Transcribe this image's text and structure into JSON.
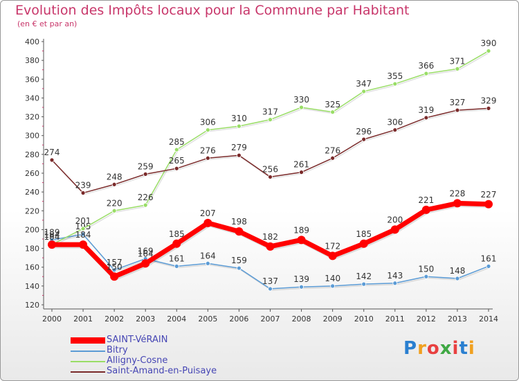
{
  "header": {
    "title": "Evolution des Impôts locaux pour la Commune par Habitant",
    "subtitle": "(en € et par an)"
  },
  "logo": {
    "text": "Proxiti",
    "letters": [
      "P",
      "r",
      "o",
      "x",
      "i",
      "t",
      "i"
    ],
    "colors": [
      "#2a7fd0",
      "#f0a020",
      "#e84040",
      "#3fa844",
      "#e84040",
      "#2a7fd0",
      "#f0a020"
    ]
  },
  "colors": {
    "title": "#c8366a",
    "axis": "#555555",
    "legend_text": "#4646b4"
  },
  "chart_data": {
    "type": "line",
    "title": "Evolution des Impôts locaux pour la Commune par Habitant",
    "subtitle": "(en € et par an)",
    "xlabel": "",
    "ylabel": "",
    "ylim": [
      120,
      400
    ],
    "yticks": [
      120,
      140,
      160,
      180,
      200,
      220,
      240,
      260,
      280,
      300,
      320,
      340,
      360,
      380,
      400
    ],
    "x": [
      "2000",
      "2001",
      "2002",
      "2003",
      "2004",
      "2005",
      "2006",
      "2007",
      "2008",
      "2009",
      "2010",
      "2011",
      "2012",
      "2013",
      "2014"
    ],
    "grid": false,
    "legend_position": "bottom-left",
    "series": [
      {
        "name": "SAINT-VéRAIN",
        "color": "#ff0000",
        "width": 7,
        "values": [
          184,
          184,
          150,
          164,
          185,
          207,
          198,
          182,
          189,
          172,
          185,
          200,
          221,
          228,
          227
        ]
      },
      {
        "name": "Bitry",
        "color": "#5b9bd5",
        "width": 1.5,
        "values": [
          189,
          195,
          157,
          169,
          161,
          164,
          159,
          137,
          139,
          140,
          142,
          143,
          150,
          148,
          161
        ]
      },
      {
        "name": "Alligny-Cosne",
        "color": "#99dd66",
        "width": 1.5,
        "values": [
          184,
          201,
          220,
          226,
          285,
          306,
          310,
          317,
          330,
          325,
          347,
          355,
          366,
          371,
          390
        ]
      },
      {
        "name": "Saint-Amand-en-Puisaye",
        "color": "#7a2a2a",
        "width": 1.5,
        "values": [
          274,
          239,
          248,
          259,
          265,
          276,
          279,
          256,
          261,
          276,
          296,
          306,
          319,
          327,
          329
        ]
      }
    ]
  }
}
